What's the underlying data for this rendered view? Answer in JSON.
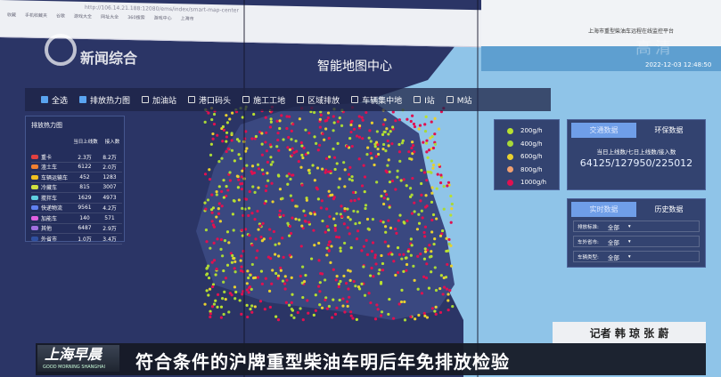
{
  "browser": {
    "url": "http://106.14.21.188:12080/ems/index/smart-map-center",
    "bookmarks": [
      "收藏",
      "手机收藏夹",
      "谷歌",
      "游戏大全",
      "网址大全",
      "360搜索",
      "游戏中心",
      "上海市"
    ]
  },
  "platform_subtitle": "上海市重型柴油车远程在线监控平台",
  "datetime": "2022-12-03 12:48:50",
  "watermark": "高清",
  "channel_logo": "新闻综合",
  "page_title": "智能地图中心",
  "checkboxes": [
    {
      "label": "全选",
      "checked": true
    },
    {
      "label": "排放热力图",
      "checked": true
    },
    {
      "label": "加油站",
      "checked": false
    },
    {
      "label": "港口码头",
      "checked": false
    },
    {
      "label": "施工工地",
      "checked": false
    },
    {
      "label": "区域排放",
      "checked": false
    },
    {
      "label": "车辆集中地",
      "checked": false
    },
    {
      "label": "I站",
      "checked": false
    },
    {
      "label": "M站",
      "checked": false
    }
  ],
  "heat_table": {
    "title": "排放热力图",
    "columns": [
      "当日上线数",
      "接入数"
    ],
    "rows": [
      {
        "name": "重卡",
        "online": "2.3万",
        "access": "8.2万",
        "color": "#e04040"
      },
      {
        "name": "渣土车",
        "online": "6122",
        "access": "2.0万",
        "color": "#f08030"
      },
      {
        "name": "车辆运输车",
        "online": "452",
        "access": "1283",
        "color": "#f0c020"
      },
      {
        "name": "冷藏车",
        "online": "815",
        "access": "3007",
        "color": "#d0e040"
      },
      {
        "name": "搅拌车",
        "online": "1629",
        "access": "4973",
        "color": "#60d0e0"
      },
      {
        "name": "快递物流",
        "online": "9561",
        "access": "4.2万",
        "color": "#6080f0"
      },
      {
        "name": "加能车",
        "online": "140",
        "access": "571",
        "color": "#e060e0"
      },
      {
        "name": "其他",
        "online": "6487",
        "access": "2.9万",
        "color": "#a070e0"
      },
      {
        "name": "外省市",
        "online": "1.0万",
        "access": "3.4万",
        "color": "#3050a0"
      }
    ]
  },
  "legend": [
    {
      "label": "200g/h",
      "color": "#b8e030"
    },
    {
      "label": "400g/h",
      "color": "#a8d838"
    },
    {
      "label": "600g/h",
      "color": "#e8d030"
    },
    {
      "label": "800g/h",
      "color": "#f0a070"
    },
    {
      "label": "1000g/h",
      "color": "#e01050"
    }
  ],
  "traffic_panel": {
    "tabs": [
      "交通数据",
      "环保数据"
    ],
    "active": 0,
    "label": "当日上线数/七日上线数/接入数",
    "value": "64125/127950/225012"
  },
  "realtime_panel": {
    "tabs": [
      "实时数据",
      "历史数据"
    ],
    "active": 0,
    "filters": [
      {
        "label": "排放标准:",
        "value": "全部"
      },
      {
        "label": "车外省市:",
        "value": "全部"
      },
      {
        "label": "车辆类型:",
        "value": "全部"
      }
    ]
  },
  "reporter": "记者 韩 琼 张 蔚",
  "program": {
    "name": "上海早晨",
    "english": "GOOD MORNING SHANGHAI"
  },
  "headline": "符合条件的沪牌重型柴油车明后年免排放检验"
}
